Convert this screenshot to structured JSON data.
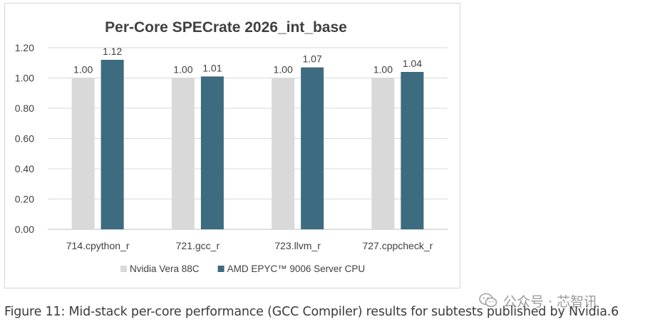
{
  "chart_data": {
    "type": "bar",
    "title": "Per-Core SPECrate 2026_int_base",
    "categories": [
      "714.cpython_r",
      "721.gcc_r",
      "723.llvm_r",
      "727.cppcheck_r"
    ],
    "series": [
      {
        "name": "Nvidia Vera 88C",
        "values": [
          1.0,
          1.0,
          1.0,
          1.0
        ],
        "labels": [
          "1.00",
          "1.00",
          "1.00",
          "1.00"
        ],
        "color": "#d9d9d9"
      },
      {
        "name": "AMD EPYC™ 9006 Server CPU",
        "values": [
          1.12,
          1.01,
          1.07,
          1.04
        ],
        "labels": [
          "1.12",
          "1.01",
          "1.07",
          "1.04"
        ],
        "color": "#3d6b7f"
      }
    ],
    "yticks": [
      "0.00",
      "0.20",
      "0.40",
      "0.60",
      "0.80",
      "1.00",
      "1.20"
    ],
    "ylim": [
      0,
      1.2
    ],
    "grid": true,
    "legend_position": "bottom"
  },
  "caption": "Figure 11: Mid-stack per-core performance (GCC Compiler) results for subtests published by Nvidia.6",
  "watermark": {
    "text": "公众号 · 芯智讯",
    "icon": "wechat-icon"
  }
}
